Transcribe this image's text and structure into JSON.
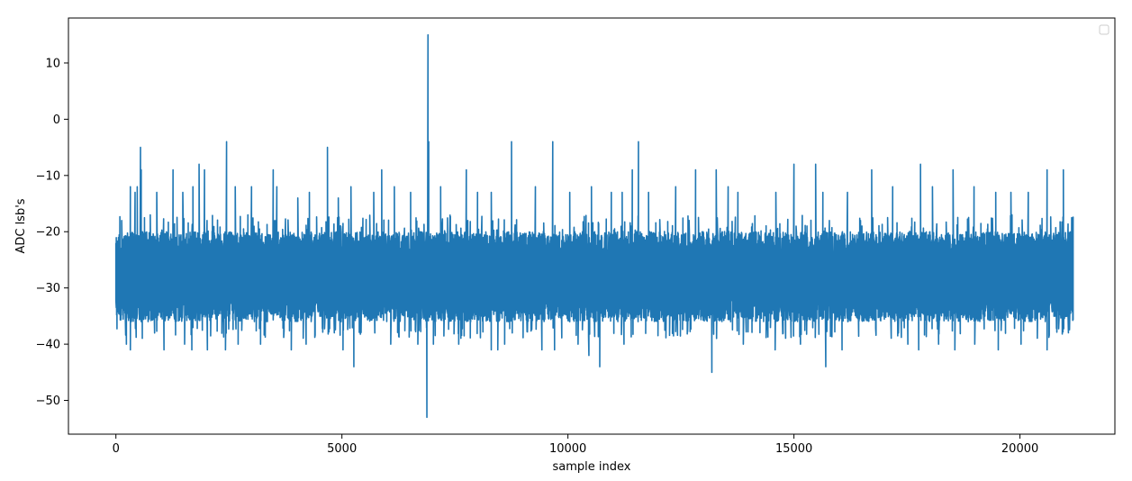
{
  "chart_data": {
    "type": "line",
    "title": "",
    "xlabel": "sample index",
    "ylabel": "ADC lsb's",
    "xlim": [
      -1050,
      22100
    ],
    "ylim": [
      -56,
      18
    ],
    "x_ticks": [
      0,
      5000,
      10000,
      15000,
      20000
    ],
    "x_tick_labels": [
      "0",
      "5000",
      "10000",
      "15000",
      "20000"
    ],
    "y_ticks": [
      -50,
      -40,
      -30,
      -20,
      -10,
      0,
      10
    ],
    "y_tick_labels": [
      "−50",
      "−40",
      "−30",
      "−20",
      "−10",
      "0",
      "10"
    ],
    "grid": false,
    "legend": {
      "placement": "top-right",
      "entries": []
    },
    "series": [
      {
        "color": "#1f77b4",
        "x_start": 0,
        "x_end": 21180,
        "typical_range": [
          -36,
          -20
        ],
        "baseline": -28,
        "spikes_up": [
          [
            130,
            -18
          ],
          [
            320,
            -12
          ],
          [
            420,
            -13
          ],
          [
            470,
            -12
          ],
          [
            540,
            -5
          ],
          [
            560,
            -9
          ],
          [
            760,
            -17
          ],
          [
            900,
            -13
          ],
          [
            1260,
            -9
          ],
          [
            1480,
            -13
          ],
          [
            1700,
            -12
          ],
          [
            1840,
            -8
          ],
          [
            1960,
            -9
          ],
          [
            2450,
            -4
          ],
          [
            2640,
            -12
          ],
          [
            3000,
            -12
          ],
          [
            3480,
            -9
          ],
          [
            3560,
            -12
          ],
          [
            4020,
            -14
          ],
          [
            4280,
            -13
          ],
          [
            4680,
            -5
          ],
          [
            4920,
            -14
          ],
          [
            5200,
            -12
          ],
          [
            5700,
            -13
          ],
          [
            5880,
            -9
          ],
          [
            6160,
            -12
          ],
          [
            6520,
            -13
          ],
          [
            6900,
            15
          ],
          [
            6920,
            -4
          ],
          [
            7180,
            -12
          ],
          [
            7750,
            -9
          ],
          [
            8000,
            -13
          ],
          [
            8300,
            -13
          ],
          [
            8750,
            -4
          ],
          [
            9280,
            -12
          ],
          [
            9660,
            -4
          ],
          [
            10040,
            -13
          ],
          [
            10520,
            -12
          ],
          [
            10960,
            -13
          ],
          [
            11200,
            -13
          ],
          [
            11420,
            -9
          ],
          [
            11560,
            -4
          ],
          [
            11780,
            -13
          ],
          [
            12380,
            -12
          ],
          [
            12820,
            -9
          ],
          [
            13280,
            -9
          ],
          [
            13540,
            -12
          ],
          [
            13760,
            -13
          ],
          [
            14600,
            -13
          ],
          [
            15000,
            -8
          ],
          [
            15480,
            -8
          ],
          [
            15640,
            -13
          ],
          [
            16180,
            -13
          ],
          [
            16720,
            -9
          ],
          [
            17180,
            -12
          ],
          [
            17800,
            -8
          ],
          [
            18060,
            -12
          ],
          [
            18520,
            -9
          ],
          [
            18980,
            -12
          ],
          [
            19460,
            -13
          ],
          [
            19800,
            -13
          ],
          [
            20180,
            -13
          ],
          [
            20600,
            -9
          ],
          [
            20960,
            -9
          ]
        ],
        "spikes_down": [
          [
            230,
            -40
          ],
          [
            320,
            -41
          ],
          [
            1060,
            -41
          ],
          [
            1520,
            -40
          ],
          [
            1680,
            -41
          ],
          [
            2020,
            -41
          ],
          [
            2420,
            -41
          ],
          [
            2700,
            -40
          ],
          [
            3200,
            -40
          ],
          [
            3880,
            -41
          ],
          [
            4210,
            -40
          ],
          [
            5020,
            -41
          ],
          [
            5260,
            -44
          ],
          [
            6080,
            -40
          ],
          [
            6680,
            -40
          ],
          [
            6880,
            -53
          ],
          [
            7020,
            -40
          ],
          [
            7580,
            -40
          ],
          [
            8300,
            -41
          ],
          [
            8450,
            -41
          ],
          [
            8600,
            -40
          ],
          [
            9420,
            -41
          ],
          [
            9700,
            -41
          ],
          [
            10220,
            -40
          ],
          [
            10460,
            -42
          ],
          [
            10700,
            -44
          ],
          [
            11240,
            -40
          ],
          [
            13180,
            -45
          ],
          [
            13880,
            -40
          ],
          [
            14580,
            -41
          ],
          [
            15140,
            -40
          ],
          [
            15700,
            -44
          ],
          [
            16060,
            -41
          ],
          [
            17520,
            -40
          ],
          [
            17760,
            -41
          ],
          [
            18200,
            -40
          ],
          [
            18560,
            -41
          ],
          [
            19000,
            -40
          ],
          [
            19520,
            -41
          ],
          [
            20020,
            -40
          ],
          [
            20600,
            -41
          ]
        ]
      }
    ]
  }
}
